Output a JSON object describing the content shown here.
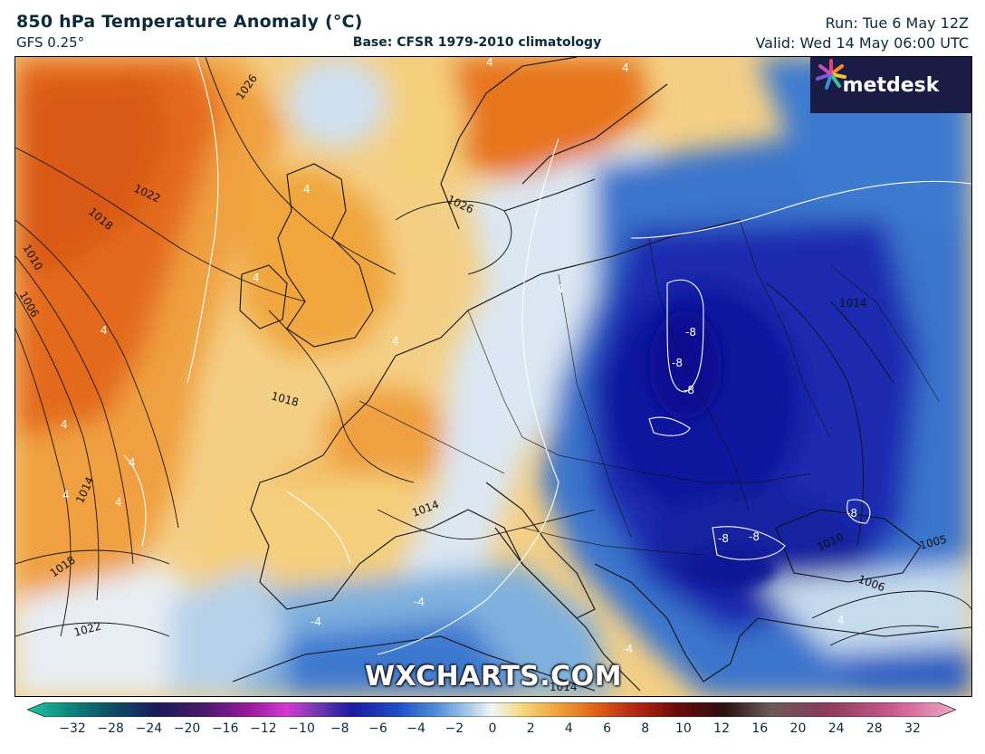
{
  "header": {
    "title": "850 hPa Temperature Anomaly (°C)",
    "model": "GFS 0.25°",
    "base": "Base: CFSR 1979-2010 climatology",
    "run": "Run: Tue 6 May 12Z",
    "valid": "Valid: Wed 14 May 06:00 UTC"
  },
  "branding": {
    "logo_text": "metdesk",
    "watermark": "WXCHARTS.COM"
  },
  "colorbar": {
    "ticks": [
      "−32",
      "−28",
      "−24",
      "−20",
      "−16",
      "−12",
      "−10",
      "−8",
      "−6",
      "−4",
      "−2",
      "0",
      "2",
      "4",
      "6",
      "8",
      "10",
      "12",
      "16",
      "20",
      "24",
      "28",
      "32"
    ]
  },
  "isobar_labels": [
    {
      "text": "1026"
    },
    {
      "text": "1022"
    },
    {
      "text": "1018"
    },
    {
      "text": "1010"
    },
    {
      "text": "1006"
    },
    {
      "text": "1026"
    },
    {
      "text": "1018"
    },
    {
      "text": "1014"
    },
    {
      "text": "1014"
    },
    {
      "text": "1018"
    },
    {
      "text": "1022"
    },
    {
      "text": "1014"
    },
    {
      "text": "1010"
    },
    {
      "text": "1006"
    },
    {
      "text": "1005"
    },
    {
      "text": "1014"
    }
  ],
  "anomaly_labels": [
    {
      "text": "4"
    },
    {
      "text": "4"
    },
    {
      "text": "4"
    },
    {
      "text": "4"
    },
    {
      "text": "4"
    },
    {
      "text": "4"
    },
    {
      "text": "4"
    },
    {
      "text": "4"
    },
    {
      "text": "4"
    },
    {
      "text": "4"
    },
    {
      "text": "4"
    },
    {
      "text": "-8"
    },
    {
      "text": "-8"
    },
    {
      "text": "-8"
    },
    {
      "text": "-8"
    },
    {
      "text": "-8"
    },
    {
      "text": "-8"
    },
    {
      "text": "-4"
    },
    {
      "text": "-4"
    },
    {
      "text": "-4"
    },
    {
      "text": "-4"
    },
    {
      "text": "4"
    }
  ],
  "colors": {
    "warm_strong": "#e2641a",
    "warm": "#f0a23c",
    "mild": "#f6d27a",
    "neutral": "#eef2f6",
    "cool": "#8fb8e0",
    "cold": "#2d66c8",
    "very_cold": "#0d1aa0"
  }
}
